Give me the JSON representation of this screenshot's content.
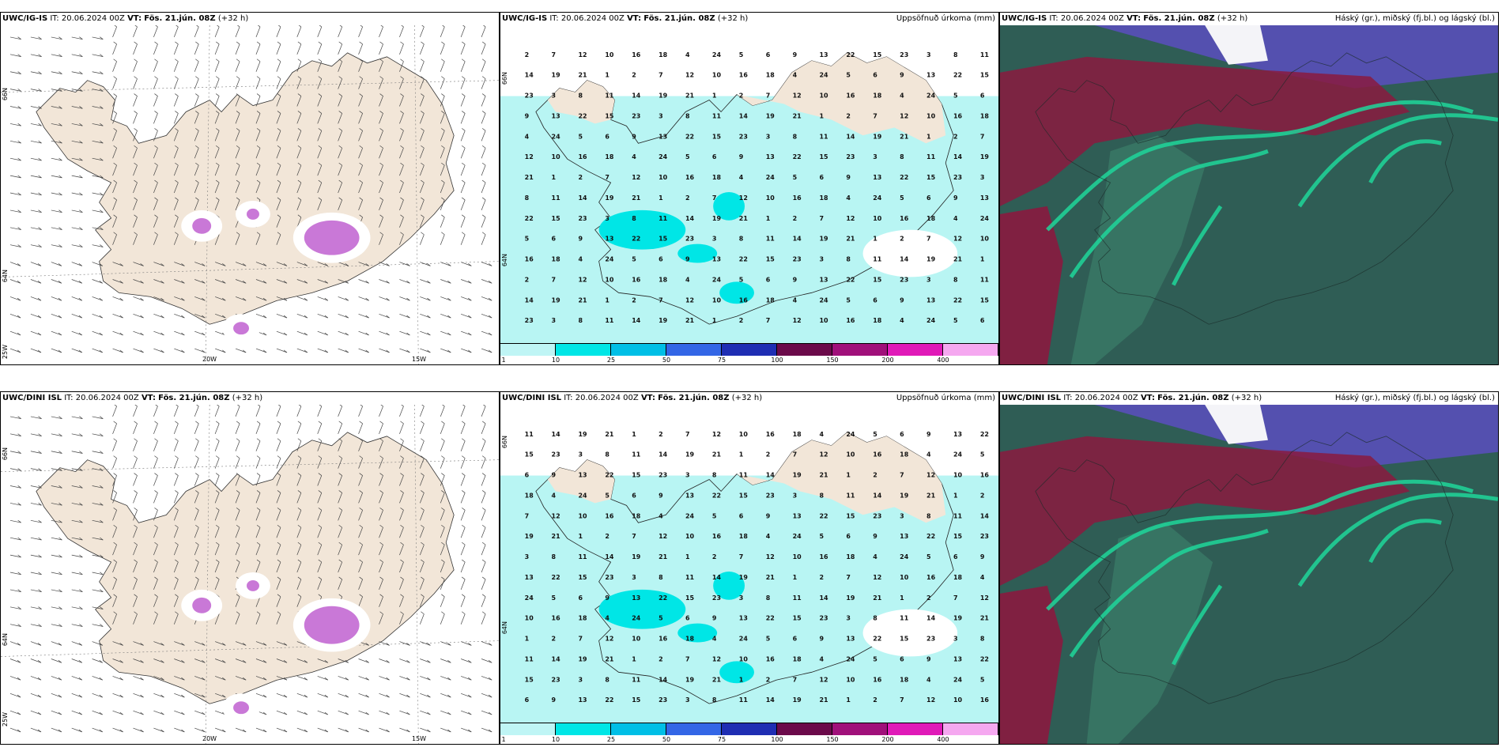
{
  "rows": [
    {
      "wind": {
        "model": "UWC/IG-IS",
        "it_label": "IT:",
        "it_value": "20.06.2024 00Z",
        "vt_label": "VT:",
        "vt_value": "Fös. 21.jún. 08Z",
        "lead": "(+32 h)",
        "title_right": ""
      },
      "precip": {
        "model": "UWC/IG-IS",
        "it_label": "IT:",
        "it_value": "20.06.2024 00Z",
        "vt_label": "VT:",
        "vt_value": "Fös. 21.jún. 08Z",
        "lead": "(+32 h)",
        "title_right": "Uppsöfnuð úrkoma (mm)"
      },
      "cloud": {
        "model": "UWC/IG-IS",
        "it_label": "IT:",
        "it_value": "20.06.2024 00Z",
        "vt_label": "VT:",
        "vt_value": "Fös. 21.jún. 08Z",
        "lead": "(+32 h)",
        "title_right": "Háský (gr.), miðský (fj.bl.) og lágský (bl.)"
      }
    },
    {
      "wind": {
        "model": "UWC/DINI ISL",
        "it_label": "IT:",
        "it_value": "20.06.2024 00Z",
        "vt_label": "VT:",
        "vt_value": "Fös. 21.jún. 08Z",
        "lead": "(+32 h)",
        "title_right": ""
      },
      "precip": {
        "model": "UWC/DINI ISL",
        "it_label": "IT:",
        "it_value": "20.06.2024 00Z",
        "vt_label": "VT:",
        "vt_value": "Fös. 21.jún. 08Z",
        "lead": "(+32 h)",
        "title_right": "Uppsöfnuð úrkoma (mm)"
      },
      "cloud": {
        "model": "UWC/DINI ISL",
        "it_label": "IT:",
        "it_value": "20.06.2024 00Z",
        "vt_label": "VT:",
        "vt_value": "Fös. 21.jún. 08Z",
        "lead": "(+32 h)",
        "title_right": "Háský (gr.), miðský (fj.bl.) og lágský (bl.)"
      }
    }
  ],
  "axes": {
    "lat_top": "66N",
    "lat_mid": "64N",
    "lon_left": "25W",
    "lon_mid": "20W",
    "lon_right": "15W"
  },
  "colorbar": {
    "labels": [
      "1",
      "10",
      "25",
      "50",
      "75",
      "100",
      "150",
      "200",
      "400"
    ],
    "colors": [
      "#bff5f5",
      "#00e6e6",
      "#00bfe6",
      "#3366e6",
      "#1f2eb3",
      "#6b0a4a",
      "#a0107a",
      "#e01ab8",
      "#f5a8f0"
    ]
  },
  "colors": {
    "land": "#f2e6d8",
    "precip_light": "#b8f5f3",
    "cloud_dark": "#2f5d55",
    "cloud_red": "#8a1a3f",
    "cloud_green": "#1fd69a",
    "cloud_blue": "#5a4ec0"
  },
  "precip_values": [
    "2",
    "3",
    "5",
    "7",
    "8",
    "6",
    "12",
    "11",
    "9",
    "10",
    "14",
    "13",
    "16",
    "19",
    "22",
    "18",
    "21",
    "15",
    "4",
    "1",
    "23",
    "24"
  ]
}
